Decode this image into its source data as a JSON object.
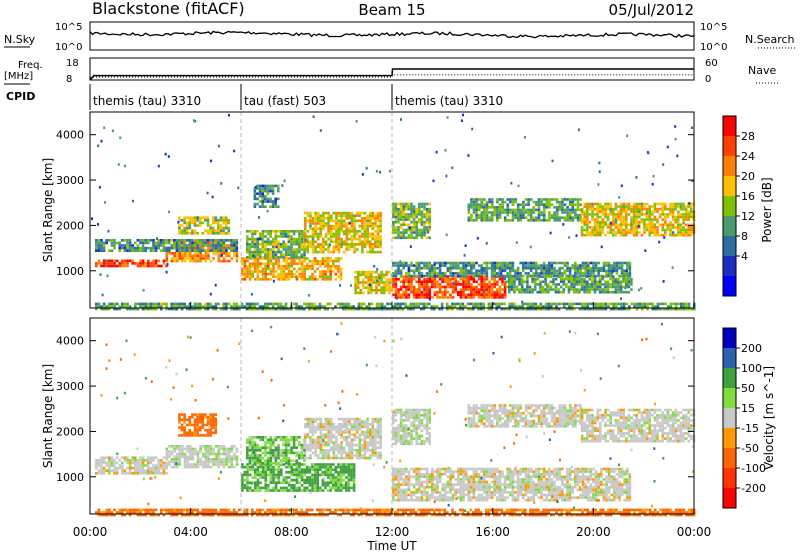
{
  "header": {
    "radar": "Blackstone (fitACF)",
    "beam": "Beam 15",
    "date": "05/Jul/2012"
  },
  "top_panels": {
    "nsky_label": "N.Sky",
    "nsearch_label": "N.Search",
    "nsky_ticks": [
      "10^5",
      "10^0"
    ],
    "nsearch_ticks": [
      "10^5",
      "10^0"
    ],
    "freq_label": "Freq.",
    "freq_unit": "[MHz]",
    "freq_ticks": [
      "18",
      "8"
    ],
    "nave_label": "Nave",
    "nave_ticks": [
      "60",
      "0"
    ],
    "cpid_label": "CPID",
    "cpid_segments": [
      {
        "label": "themis (tau) 3310",
        "start_h": 0,
        "end_h": 6
      },
      {
        "label": "tau (fast) 503",
        "start_h": 6,
        "end_h": 12
      },
      {
        "label": "themis (tau) 3310",
        "start_h": 12,
        "end_h": 24
      }
    ],
    "freq_steps": [
      {
        "h": 0.0,
        "mhz": 8
      },
      {
        "h": 0.15,
        "mhz": 10
      },
      {
        "h": 12.0,
        "mhz": 10
      },
      {
        "h": 12.02,
        "mhz": 13
      },
      {
        "h": 24.0,
        "mhz": 13
      }
    ],
    "nave_steps": [
      {
        "h": 0.0,
        "val": 8
      },
      {
        "h": 12.0,
        "val": 8
      },
      {
        "h": 12.02,
        "val": 14
      },
      {
        "h": 24.0,
        "val": 14
      }
    ]
  },
  "power_colorbar": {
    "label": "Power [dB]",
    "ticks": [
      "28",
      "24",
      "20",
      "16",
      "12",
      "8",
      "4"
    ],
    "colors": [
      "#ff0000",
      "#ff4000",
      "#ff8000",
      "#ffbf00",
      "#80c000",
      "#4a9a70",
      "#2a6fa0",
      "#1a2fc0",
      "#0000ff"
    ]
  },
  "velocity_colorbar": {
    "label": "Velocity [m s^-1]",
    "ticks": [
      "200",
      "100",
      "50",
      "15",
      "-15",
      "-50",
      "-100",
      "-200"
    ],
    "colors": [
      "#0000c0",
      "#3060b0",
      "#40a040",
      "#80dd40",
      "#c8c8c8",
      "#ff9900",
      "#ff6600",
      "#ff3300",
      "#ff0000"
    ]
  },
  "chart_data": {
    "type": "heatmap",
    "xlabel": "Time UT",
    "ylabel": "Slant Range [km]",
    "x_ticks": [
      "00:00",
      "04:00",
      "08:00",
      "12:00",
      "16:00",
      "20:00",
      "00:00"
    ],
    "y_ticks": [
      "1000",
      "2000",
      "3000",
      "4000"
    ],
    "xlim_hours": [
      0,
      24
    ],
    "ylim_km": [
      180,
      4500
    ],
    "power_bands": [
      {
        "t0": 0.2,
        "t1": 3.0,
        "r0": 1100,
        "r1": 1250,
        "level": 26
      },
      {
        "t0": 3.0,
        "t1": 5.8,
        "r0": 1200,
        "r1": 1700,
        "level": 22
      },
      {
        "t0": 0.2,
        "t1": 5.8,
        "r0": 1450,
        "r1": 1700,
        "level": 10
      },
      {
        "t0": 3.5,
        "t1": 5.5,
        "r0": 1800,
        "r1": 2200,
        "level": 16
      },
      {
        "t0": 6.0,
        "t1": 10.0,
        "r0": 800,
        "r1": 1300,
        "level": 20
      },
      {
        "t0": 6.2,
        "t1": 8.5,
        "r0": 1300,
        "r1": 1900,
        "level": 14
      },
      {
        "t0": 8.5,
        "t1": 11.5,
        "r0": 1400,
        "r1": 2300,
        "level": 18
      },
      {
        "t0": 10.5,
        "t1": 12.0,
        "r0": 500,
        "r1": 1000,
        "level": 18
      },
      {
        "t0": 12.0,
        "t1": 16.5,
        "r0": 400,
        "r1": 900,
        "level": 26
      },
      {
        "t0": 12.0,
        "t1": 21.5,
        "r0": 900,
        "r1": 1200,
        "level": 10
      },
      {
        "t0": 16.5,
        "t1": 21.5,
        "r0": 500,
        "r1": 900,
        "level": 12
      },
      {
        "t0": 12.0,
        "t1": 13.5,
        "r0": 1700,
        "r1": 2500,
        "level": 14
      },
      {
        "t0": 15.0,
        "t1": 19.5,
        "r0": 2100,
        "r1": 2600,
        "level": 12
      },
      {
        "t0": 19.5,
        "t1": 24.0,
        "r0": 1800,
        "r1": 2500,
        "level": 18
      },
      {
        "t0": 6.5,
        "t1": 7.5,
        "r0": 2400,
        "r1": 2900,
        "level": 10
      },
      {
        "t0": 0.2,
        "t1": 24.0,
        "r0": 180,
        "r1": 300,
        "level": 12
      }
    ],
    "velocity_bands": [
      {
        "t0": 0.2,
        "t1": 3.0,
        "r0": 1100,
        "r1": 1450,
        "vel": 0
      },
      {
        "t0": 3.0,
        "t1": 5.8,
        "r0": 1200,
        "r1": 1700,
        "vel": 5
      },
      {
        "t0": 3.5,
        "t1": 5.0,
        "r0": 1900,
        "r1": 2400,
        "vel": -60
      },
      {
        "t0": 6.0,
        "t1": 10.5,
        "r0": 700,
        "r1": 1300,
        "vel": 40
      },
      {
        "t0": 6.2,
        "t1": 8.5,
        "r0": 1300,
        "r1": 1900,
        "vel": 30
      },
      {
        "t0": 8.5,
        "t1": 11.5,
        "r0": 1400,
        "r1": 2300,
        "vel": 0
      },
      {
        "t0": 12.0,
        "t1": 21.5,
        "r0": 500,
        "r1": 1200,
        "vel": 0
      },
      {
        "t0": 12.0,
        "t1": 13.5,
        "r0": 1700,
        "r1": 2500,
        "vel": 5
      },
      {
        "t0": 15.0,
        "t1": 19.5,
        "r0": 2100,
        "r1": 2600,
        "vel": 0
      },
      {
        "t0": 19.5,
        "t1": 24.0,
        "r0": 1800,
        "r1": 2500,
        "vel": 0
      },
      {
        "t0": 0.2,
        "t1": 24.0,
        "r0": 180,
        "r1": 300,
        "vel": -60
      }
    ]
  }
}
